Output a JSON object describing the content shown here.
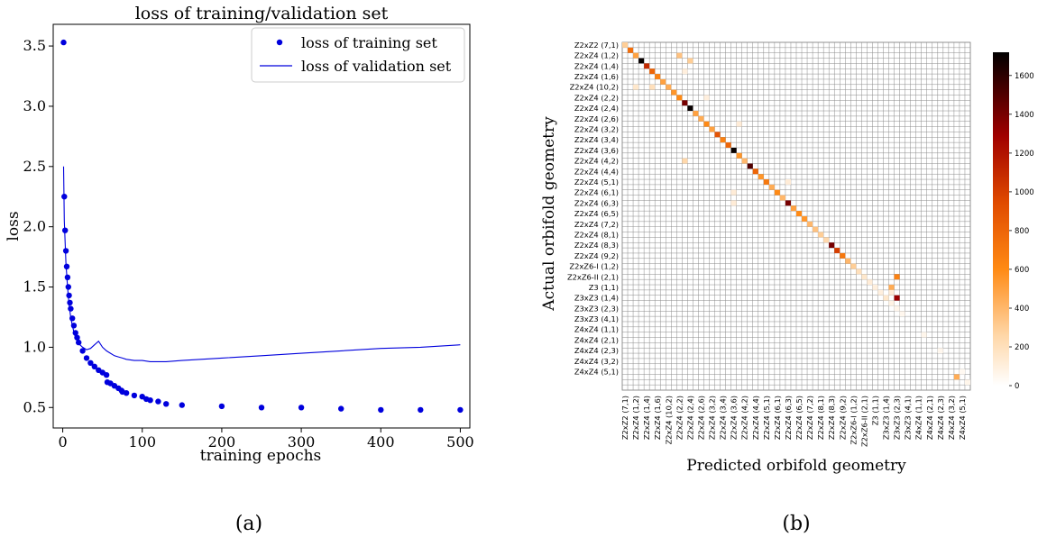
{
  "panel_labels": {
    "a": "(a)",
    "b": "(b)"
  },
  "chart_data": [
    {
      "type": "scatter",
      "title": "loss of training/validation set",
      "xlabel": "training epochs",
      "ylabel": "loss",
      "xlim": [
        -12,
        512
      ],
      "ylim": [
        0.33,
        3.68
      ],
      "xticks": [
        0,
        100,
        200,
        300,
        400,
        500
      ],
      "yticks": [
        0.5,
        1.0,
        1.5,
        2.0,
        2.5,
        3.0,
        3.5
      ],
      "ytick_labels": [
        "0.5",
        "1.0",
        "1.5",
        "2.0",
        "2.5",
        "3.0",
        "3.5"
      ],
      "legend_position": "top-right",
      "grid": false,
      "series": [
        {
          "name": "loss of training set",
          "style": "points",
          "color": "#0000dd",
          "x": [
            1,
            2,
            3,
            4,
            5,
            6,
            7,
            8,
            9,
            10,
            12,
            14,
            16,
            18,
            20,
            25,
            30,
            35,
            40,
            45,
            50,
            55,
            56,
            60,
            65,
            70,
            74,
            75,
            80,
            90,
            100,
            105,
            110,
            120,
            130,
            150,
            200,
            250,
            300,
            350,
            400,
            450,
            500
          ],
          "y": [
            3.53,
            2.25,
            1.97,
            1.8,
            1.67,
            1.58,
            1.5,
            1.43,
            1.37,
            1.32,
            1.24,
            1.18,
            1.12,
            1.08,
            1.04,
            0.97,
            0.91,
            0.87,
            0.84,
            0.81,
            0.79,
            0.77,
            0.71,
            0.7,
            0.68,
            0.66,
            0.64,
            0.63,
            0.62,
            0.6,
            0.59,
            0.57,
            0.56,
            0.55,
            0.53,
            0.52,
            0.51,
            0.5,
            0.5,
            0.49,
            0.48,
            0.48,
            0.48
          ]
        },
        {
          "name": "loss of validation set",
          "style": "line",
          "color": "#0000dd",
          "x": [
            1,
            2,
            4,
            6,
            8,
            10,
            12,
            15,
            20,
            25,
            30,
            35,
            40,
            45,
            50,
            55,
            60,
            65,
            70,
            75,
            80,
            90,
            100,
            110,
            120,
            130,
            150,
            200,
            250,
            300,
            350,
            400,
            450,
            500
          ],
          "y": [
            2.5,
            2.05,
            1.7,
            1.5,
            1.35,
            1.25,
            1.18,
            1.1,
            1.03,
            1.0,
            0.98,
            0.99,
            1.02,
            1.05,
            1.0,
            0.97,
            0.95,
            0.93,
            0.92,
            0.91,
            0.9,
            0.89,
            0.89,
            0.88,
            0.88,
            0.88,
            0.89,
            0.91,
            0.93,
            0.95,
            0.97,
            0.99,
            1.0,
            1.02
          ]
        }
      ]
    },
    {
      "type": "heatmap",
      "xlabel": "Predicted orbifold geometry",
      "ylabel": "Actual orbifold geometry",
      "row_labels": [
        "Z2xZ2 (7,1)",
        "Z2xZ4 (1,2)",
        "Z2xZ4 (1,4)",
        "Z2xZ4 (1,6)",
        "Z2xZ4 (10,2)",
        "Z2xZ4 (2,2)",
        "Z2xZ4 (2,4)",
        "Z2xZ4 (2,6)",
        "Z2xZ4 (3,2)",
        "Z2xZ4 (3,4)",
        "Z2xZ4 (3,6)",
        "Z2xZ4 (4,2)",
        "Z2xZ4 (4,4)",
        "Z2xZ4 (5,1)",
        "Z2xZ4 (6,1)",
        "Z2xZ4 (6,3)",
        "Z2xZ4 (6,5)",
        "Z2xZ4 (7,2)",
        "Z2xZ4 (8,1)",
        "Z2xZ4 (8,3)",
        "Z2xZ4 (9,2)",
        "Z2xZ6-I (1,2)",
        "Z2xZ6-II (2,1)",
        "Z3 (1,1)",
        "Z3xZ3 (1,4)",
        "Z3xZ3 (2,3)",
        "Z3xZ3 (4,1)",
        "Z4xZ4 (1,1)",
        "Z4xZ4 (2,1)",
        "Z4xZ4 (2,3)",
        "Z4xZ4 (3,2)",
        "Z4xZ4 (5,1)"
      ],
      "col_labels": [
        "Z2xZ2 (7,1)",
        "Z2xZ4 (1,2)",
        "Z2xZ4 (1,4)",
        "Z2xZ4 (1,6)",
        "Z2xZ4 (10,2)",
        "Z2xZ4 (2,2)",
        "Z2xZ4 (2,4)",
        "Z2xZ4 (2,6)",
        "Z2xZ4 (3,2)",
        "Z2xZ4 (3,4)",
        "Z2xZ4 (3,6)",
        "Z2xZ4 (4,2)",
        "Z2xZ4 (4,4)",
        "Z2xZ4 (5,1)",
        "Z2xZ4 (6,1)",
        "Z2xZ4 (6,3)",
        "Z2xZ4 (6,5)",
        "Z2xZ4 (7,2)",
        "Z2xZ4 (8,1)",
        "Z2xZ4 (8,3)",
        "Z2xZ4 (9,2)",
        "Z2xZ6-I (1,2)",
        "Z2xZ6-II (2,1)",
        "Z3 (1,1)",
        "Z3xZ3 (1,4)",
        "Z3xZ3 (2,3)",
        "Z3xZ3 (4,1)",
        "Z4xZ4 (1,1)",
        "Z4xZ4 (2,1)",
        "Z4xZ4 (2,3)",
        "Z4xZ4 (3,2)",
        "Z4xZ4 (5,1)"
      ],
      "grid_rows": 66,
      "grid_cols": 64,
      "colorbar": {
        "min": 0,
        "max": 1720,
        "ticks": [
          0,
          200,
          400,
          600,
          800,
          1000,
          1200,
          1400,
          1600
        ],
        "position": "right"
      },
      "cells": [
        [
          0,
          0,
          300
        ],
        [
          1,
          1,
          750
        ],
        [
          2,
          2,
          500
        ],
        [
          3,
          3,
          1700
        ],
        [
          4,
          4,
          1100
        ],
        [
          5,
          5,
          800
        ],
        [
          6,
          6,
          650
        ],
        [
          7,
          7,
          500
        ],
        [
          8,
          8,
          450
        ],
        [
          9,
          9,
          550
        ],
        [
          10,
          10,
          600
        ],
        [
          11,
          11,
          1400
        ],
        [
          12,
          12,
          1700
        ],
        [
          13,
          13,
          500
        ],
        [
          14,
          14,
          450
        ],
        [
          15,
          15,
          600
        ],
        [
          16,
          16,
          500
        ],
        [
          17,
          17,
          900
        ],
        [
          18,
          18,
          650
        ],
        [
          19,
          19,
          800
        ],
        [
          20,
          20,
          1700
        ],
        [
          21,
          21,
          550
        ],
        [
          22,
          22,
          400
        ],
        [
          23,
          23,
          1500
        ],
        [
          24,
          24,
          800
        ],
        [
          25,
          25,
          550
        ],
        [
          26,
          26,
          700
        ],
        [
          27,
          27,
          450
        ],
        [
          28,
          28,
          600
        ],
        [
          29,
          29,
          400
        ],
        [
          30,
          30,
          1400
        ],
        [
          31,
          31,
          500
        ],
        [
          32,
          32,
          600
        ],
        [
          33,
          33,
          550
        ],
        [
          34,
          34,
          400
        ],
        [
          35,
          35,
          350
        ],
        [
          36,
          36,
          300
        ],
        [
          37,
          37,
          250
        ],
        [
          38,
          38,
          1400
        ],
        [
          39,
          39,
          1000
        ],
        [
          40,
          40,
          700
        ],
        [
          41,
          41,
          400
        ],
        [
          42,
          42,
          300
        ],
        [
          43,
          43,
          200
        ],
        [
          44,
          44,
          150
        ],
        [
          45,
          45,
          120
        ],
        [
          46,
          46,
          100
        ],
        [
          47,
          47,
          100
        ],
        [
          48,
          48,
          80
        ],
        [
          49,
          49,
          80
        ],
        [
          50,
          50,
          60
        ],
        [
          51,
          51,
          50
        ],
        [
          2,
          10,
          350
        ],
        [
          3,
          12,
          300
        ],
        [
          8,
          2,
          150
        ],
        [
          8,
          5,
          200
        ],
        [
          15,
          21,
          120
        ],
        [
          22,
          11,
          250
        ],
        [
          26,
          30,
          120
        ],
        [
          28,
          20,
          120
        ],
        [
          30,
          20,
          120
        ],
        [
          10,
          15,
          100
        ],
        [
          5,
          11,
          100
        ],
        [
          44,
          50,
          650
        ],
        [
          46,
          49,
          450
        ],
        [
          48,
          50,
          1300
        ],
        [
          48,
          48,
          150
        ],
        [
          47,
          49,
          120
        ],
        [
          55,
          55,
          60
        ],
        [
          58,
          58,
          50
        ],
        [
          62,
          62,
          40
        ],
        [
          63,
          61,
          450
        ],
        [
          64,
          63,
          60
        ]
      ]
    }
  ]
}
